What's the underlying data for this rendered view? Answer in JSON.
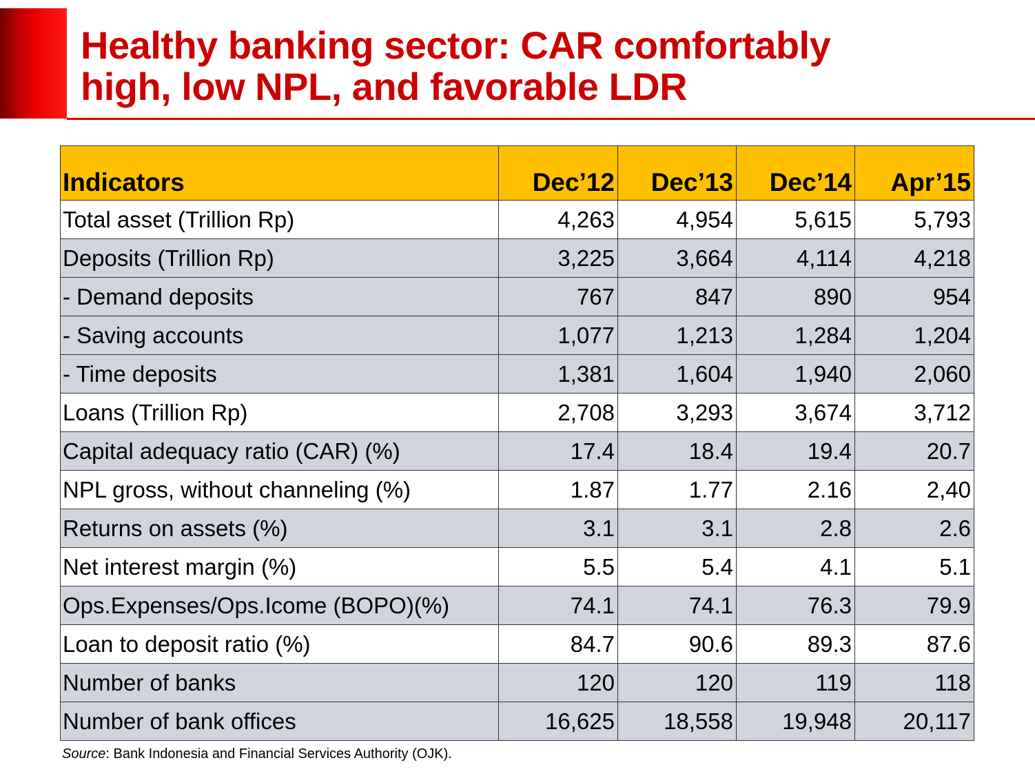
{
  "slide": {
    "title_line1": "Healthy banking sector: CAR comfortably",
    "title_line2": "high, low NPL, and favorable LDR",
    "accent_color": "#cc0000",
    "header_color": "#ffc000",
    "band_color": "#d0d4dc"
  },
  "table": {
    "header": {
      "label": "Indicators",
      "periods": [
        "Dec’12",
        "Dec’13",
        "Dec’14",
        "Apr’15"
      ]
    },
    "rows": [
      {
        "label": "Total asset (Trillion Rp)",
        "values": [
          "4,263",
          "4,954",
          "5,615",
          "5,793"
        ]
      },
      {
        "label": "Deposits (Trillion Rp)",
        "values": [
          "3,225",
          "3,664",
          "4,114",
          "4,218"
        ]
      },
      {
        "label": "- Demand deposits",
        "values": [
          "767",
          "847",
          "890",
          "954"
        ]
      },
      {
        "label": "- Saving accounts",
        "values": [
          "1,077",
          "1,213",
          "1,284",
          "1,204"
        ]
      },
      {
        "label": "- Time deposits",
        "values": [
          "1,381",
          "1,604",
          "1,940",
          "2,060"
        ]
      },
      {
        "label": "Loans (Trillion Rp)",
        "values": [
          "2,708",
          "3,293",
          "3,674",
          "3,712"
        ]
      },
      {
        "label": "Capital adequacy ratio (CAR) (%)",
        "values": [
          "17.4",
          "18.4",
          "19.4",
          "20.7"
        ]
      },
      {
        "label": "NPL gross, without channeling (%)",
        "values": [
          "1.87",
          "1.77",
          "2.16",
          "2,40"
        ]
      },
      {
        "label": "Returns on assets (%)",
        "values": [
          "3.1",
          "3.1",
          "2.8",
          "2.6"
        ]
      },
      {
        "label": "Net interest margin (%)",
        "values": [
          "5.5",
          "5.4",
          "4.1",
          "5.1"
        ]
      },
      {
        "label": "Ops.Expenses/Ops.Icome (BOPO)(%)",
        "values": [
          "74.1",
          "74.1",
          "76.3",
          "79.9"
        ]
      },
      {
        "label": "Loan to deposit ratio (%)",
        "values": [
          "84.7",
          "90.6",
          "89.3",
          "87.6"
        ]
      },
      {
        "label": "Number of banks",
        "values": [
          "120",
          "120",
          "119",
          "118"
        ]
      },
      {
        "label": "Number of bank offices",
        "values": [
          "16,625",
          "18,558",
          "19,948",
          "20,117"
        ]
      }
    ]
  },
  "source": {
    "prefix": "Source",
    "text": ": Bank Indonesia and Financial Services Authority (OJK)."
  }
}
